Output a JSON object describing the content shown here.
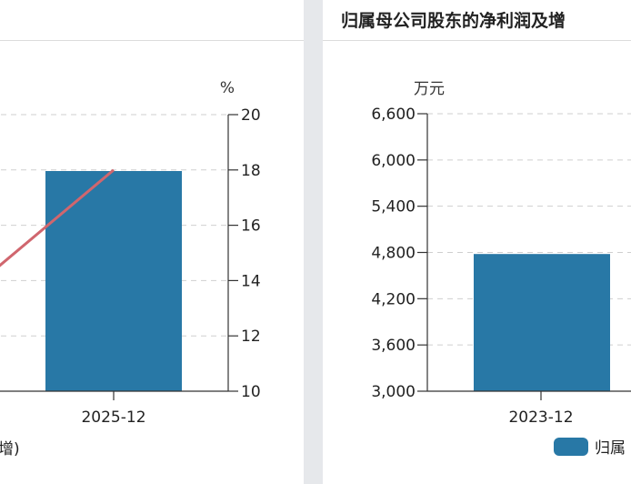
{
  "left_panel": {
    "y2_unit": "%",
    "legend_fragment": "增)",
    "colors": {
      "bar": "#2878a6",
      "line": "#d0666e"
    }
  },
  "right_panel": {
    "title": "归属母公司股东的净利润及增",
    "y_unit": "万元",
    "legend_label": "归属",
    "colors": {
      "bar": "#2878a6"
    }
  },
  "chart_data": [
    {
      "type": "bar",
      "categories": [
        "2025-12"
      ],
      "series": [
        {
          "type": "bar",
          "values": [
            null
          ]
        },
        {
          "type": "line",
          "axis": "right",
          "values": [
            18
          ]
        }
      ],
      "y2_ticks": [
        10,
        12,
        14,
        16,
        18,
        20
      ],
      "y2lim": [
        10,
        20
      ],
      "y2label": "%",
      "grid": true
    },
    {
      "type": "bar",
      "categories": [
        "2023-12"
      ],
      "series": [
        {
          "name": "归属",
          "values": [
            4780
          ]
        }
      ],
      "y_ticks": [
        "3,000",
        "3,600",
        "4,200",
        "4,800",
        "5,400",
        "6,000",
        "6,600"
      ],
      "ylim": [
        3000,
        6600
      ],
      "ylabel": "万元",
      "grid": true,
      "legend": "bottom"
    }
  ]
}
